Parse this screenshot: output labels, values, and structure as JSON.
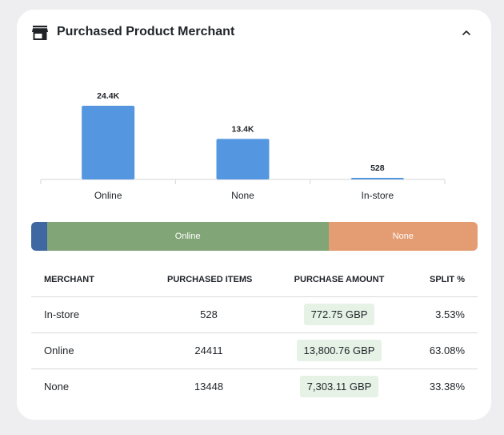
{
  "widget": {
    "title": "Purchased Product Merchant",
    "icon": "store-icon",
    "collapse_icon": "chevron-up-icon"
  },
  "colors": {
    "bar": "#5596e0",
    "in_store": "#3f67a1",
    "online": "#82a578",
    "none": "#e49d73",
    "amount_pill": "#e6f2e6"
  },
  "chart_data": {
    "type": "bar",
    "categories": [
      "Online",
      "None",
      "In-store"
    ],
    "values": [
      24411,
      13448,
      528
    ],
    "data_labels": [
      "24.4K",
      "13.4K",
      "528"
    ],
    "title": "",
    "xlabel": "",
    "ylabel": "",
    "ylim": [
      0,
      24411
    ],
    "grid": false
  },
  "split_bar": {
    "segments": [
      {
        "key": "in_store",
        "label": "",
        "fraction": 0.0353
      },
      {
        "key": "online",
        "label": "Online",
        "fraction": 0.6308
      },
      {
        "key": "none",
        "label": "None",
        "fraction": 0.3338
      }
    ]
  },
  "table": {
    "headers": {
      "merchant": "MERCHANT",
      "items": "PURCHASED ITEMS",
      "amount": "PURCHASE AMOUNT",
      "split": "SPLIT %"
    },
    "rows": [
      {
        "merchant": "In-store",
        "items": "528",
        "amount": "772.75 GBP",
        "split": "3.53%"
      },
      {
        "merchant": "Online",
        "items": "24411",
        "amount": "13,800.76 GBP",
        "split": "63.08%"
      },
      {
        "merchant": "None",
        "items": "13448",
        "amount": "7,303.11 GBP",
        "split": "33.38%"
      }
    ]
  }
}
